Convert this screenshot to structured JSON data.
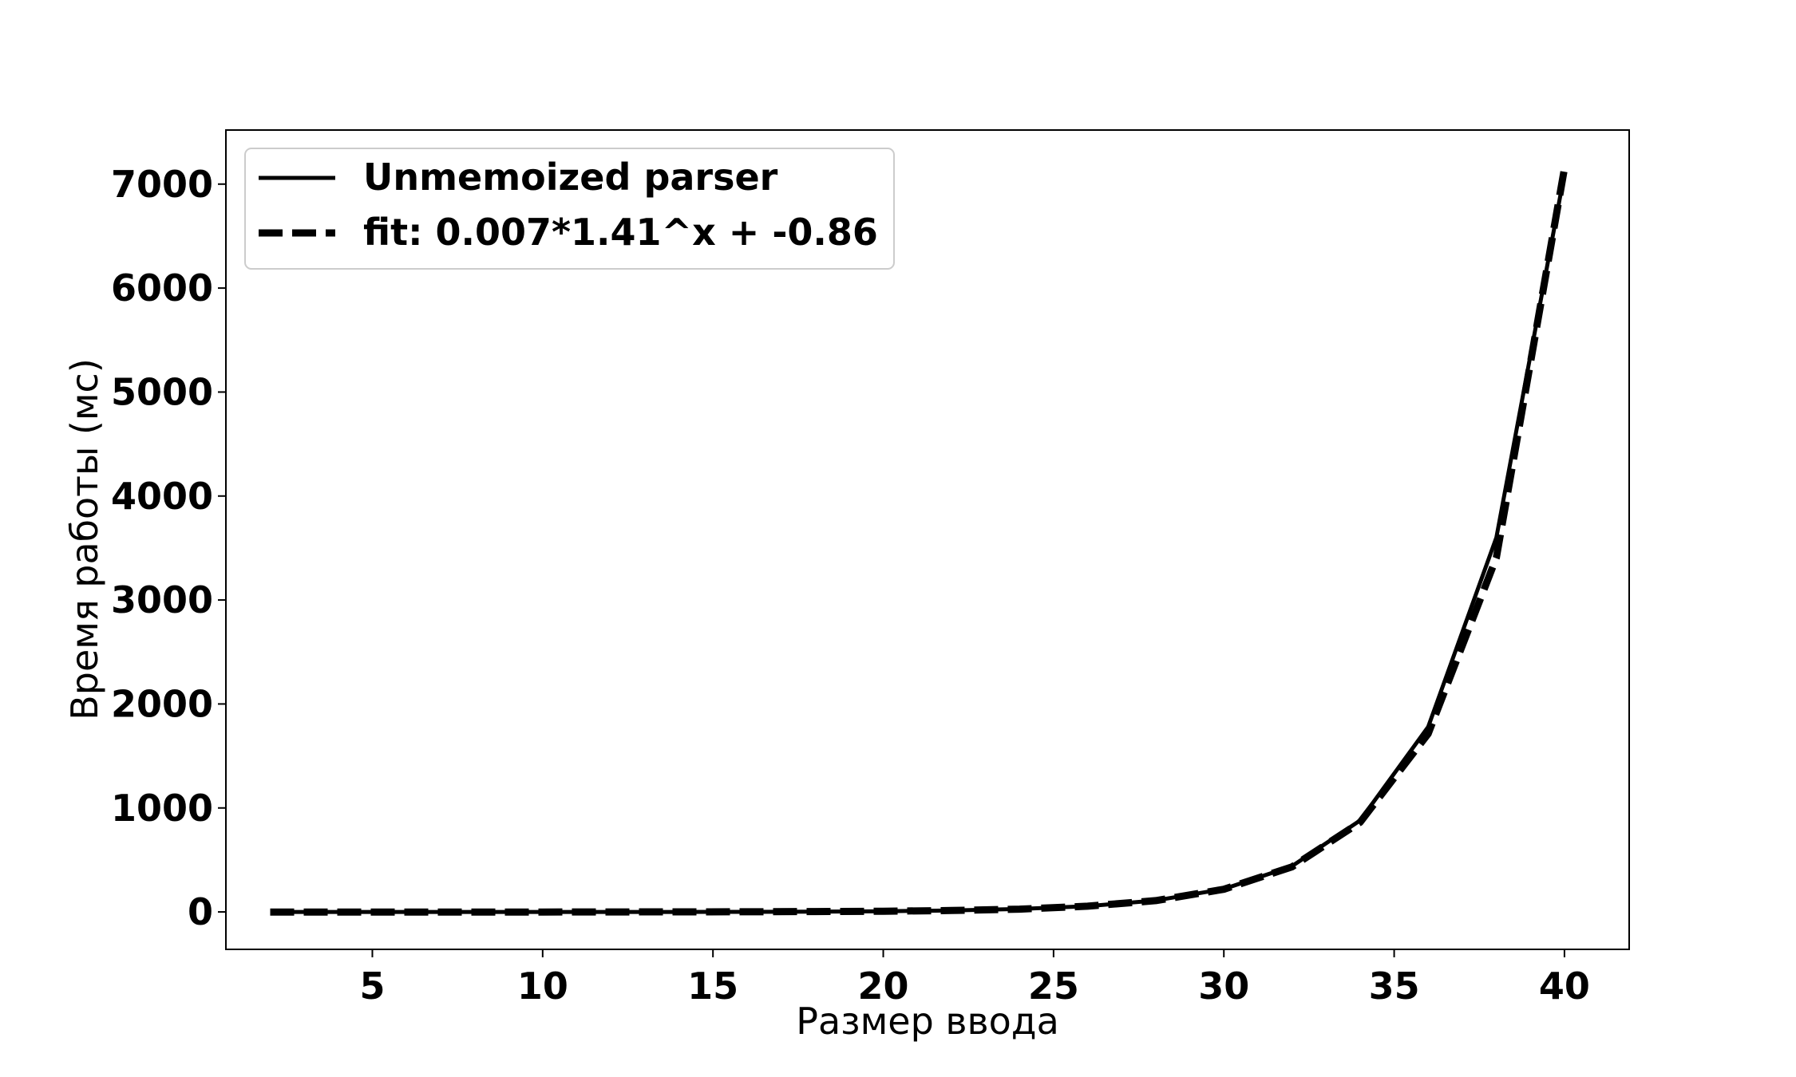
{
  "chart_data": {
    "type": "line",
    "title": "",
    "xlabel": "Размер ввода",
    "ylabel": "Время работы (мс)",
    "xlim": [
      0.7,
      41.9
    ],
    "ylim": [
      -360,
      7520
    ],
    "xticks": [
      5,
      10,
      15,
      20,
      25,
      30,
      35,
      40
    ],
    "yticks": [
      0,
      1000,
      2000,
      3000,
      4000,
      5000,
      6000,
      7000
    ],
    "grid": false,
    "legend_position": "upper-left",
    "series": [
      {
        "name": "Unmemoized parser",
        "style": "solid",
        "color": "#000000",
        "x": [
          2,
          4,
          6,
          8,
          10,
          12,
          14,
          16,
          18,
          20,
          22,
          24,
          26,
          28,
          30,
          32,
          34,
          36,
          38,
          40
        ],
        "y": [
          0,
          0,
          0,
          0,
          0,
          0,
          0,
          1,
          3,
          7,
          14,
          28,
          55,
          110,
          220,
          440,
          880,
          1780,
          3600,
          7100
        ]
      },
      {
        "name": "fit: 0.007*1.41^x + -0.86",
        "style": "dashed",
        "color": "#000000",
        "x": [
          2,
          4,
          6,
          8,
          10,
          12,
          14,
          16,
          18,
          20,
          22,
          24,
          26,
          28,
          30,
          32,
          34,
          36,
          38,
          40
        ],
        "y": [
          -1,
          -1,
          -1,
          -0.8,
          -0.6,
          -0.3,
          0.9,
          1.7,
          3.5,
          7,
          14,
          27,
          55,
          109,
          218,
          433,
          862,
          1714,
          3407,
          7150
        ]
      }
    ]
  }
}
